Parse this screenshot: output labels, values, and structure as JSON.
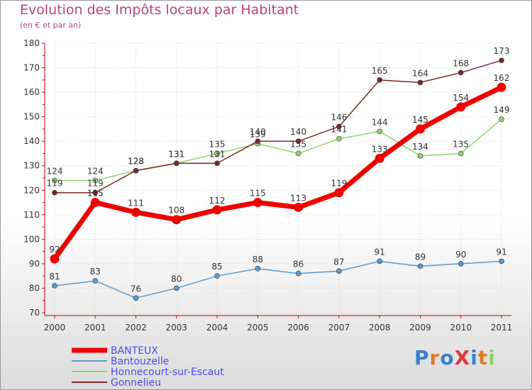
{
  "chart_data": {
    "type": "line",
    "title": "Evolution des Impôts locaux par Habitant",
    "subtitle": "(en € et par an)",
    "categories": [
      "2000",
      "2001",
      "2002",
      "2003",
      "2004",
      "2005",
      "2006",
      "2007",
      "2008",
      "2009",
      "2010",
      "2011"
    ],
    "ylim": [
      70,
      180
    ],
    "yticks": [
      70,
      80,
      90,
      100,
      110,
      120,
      130,
      140,
      150,
      160,
      170,
      180
    ],
    "series": [
      {
        "name": "BANTEUX",
        "color": "#ee0000",
        "values": [
          92,
          115,
          111,
          108,
          112,
          115,
          113,
          119,
          133,
          145,
          154,
          162
        ]
      },
      {
        "name": "Bantouzelle",
        "color": "#5a9ad0",
        "values": [
          81,
          83,
          76,
          80,
          85,
          88,
          86,
          87,
          91,
          89,
          90,
          91
        ]
      },
      {
        "name": "Honnecourt-sur-Escaut",
        "color": "#8ed36a",
        "values": [
          124,
          124,
          128,
          131,
          135,
          139,
          135,
          141,
          144,
          134,
          135,
          149
        ]
      },
      {
        "name": "Gonnelieu",
        "color": "#7b2a2a",
        "values": [
          119,
          119,
          128,
          131,
          131,
          140,
          140,
          146,
          165,
          164,
          168,
          173
        ]
      }
    ],
    "value_labels": [
      [
        "92",
        "115",
        "111",
        "108",
        "112",
        "115",
        "113",
        "119",
        "133",
        "145",
        "154",
        "162"
      ],
      [
        "81",
        "83",
        "76",
        "80",
        "85",
        "88",
        "86",
        "87",
        "91",
        "89",
        "90",
        "91"
      ],
      [
        "124",
        "124",
        "128",
        "131",
        "135",
        "139",
        "135",
        "141",
        "144",
        "134",
        "135",
        "149"
      ],
      [
        "119",
        "119",
        "128",
        "131",
        "131",
        "140",
        "140",
        "146",
        "165",
        "164",
        "168",
        "173"
      ]
    ]
  },
  "logo": {
    "text": "ProXiti",
    "letter_colors": [
      "#3a7fd0",
      "#e07b2a",
      "#3a7fd0",
      "#e03a3a",
      "#3a7fd0",
      "#e07b2a",
      "#8ed36a"
    ]
  }
}
